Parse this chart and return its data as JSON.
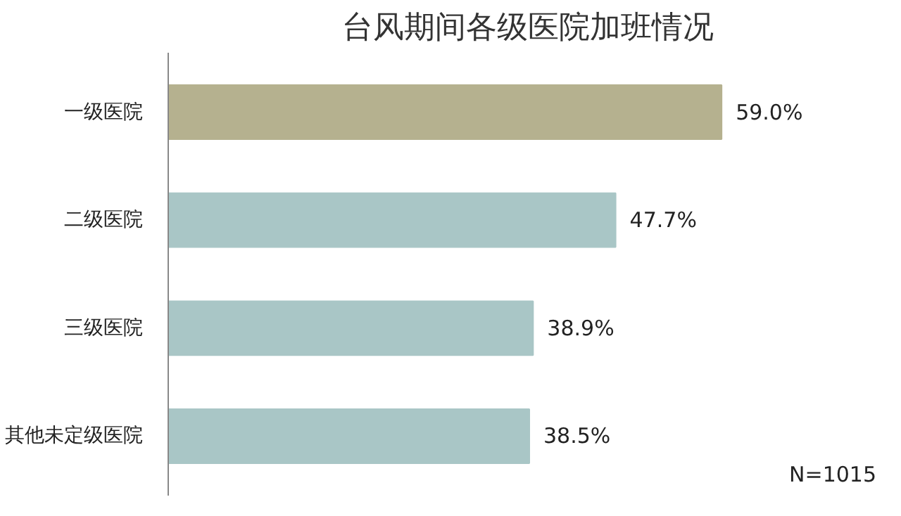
{
  "chart_data": {
    "type": "bar",
    "orientation": "horizontal",
    "title": "台风期间各级医院加班情况",
    "categories": [
      "一级医院",
      "二级医院",
      "三级医院",
      "其他未定级医院"
    ],
    "values": [
      59.0,
      47.7,
      38.9,
      38.5
    ],
    "colors": [
      "#b5b18f",
      "#a9c6c6",
      "#a9c6c6",
      "#a9c6c6"
    ],
    "value_labels": [
      "59.0%",
      "47.7%",
      "38.9%",
      "38.5%"
    ],
    "annotations": [
      "N=1015"
    ],
    "grid": false
  }
}
